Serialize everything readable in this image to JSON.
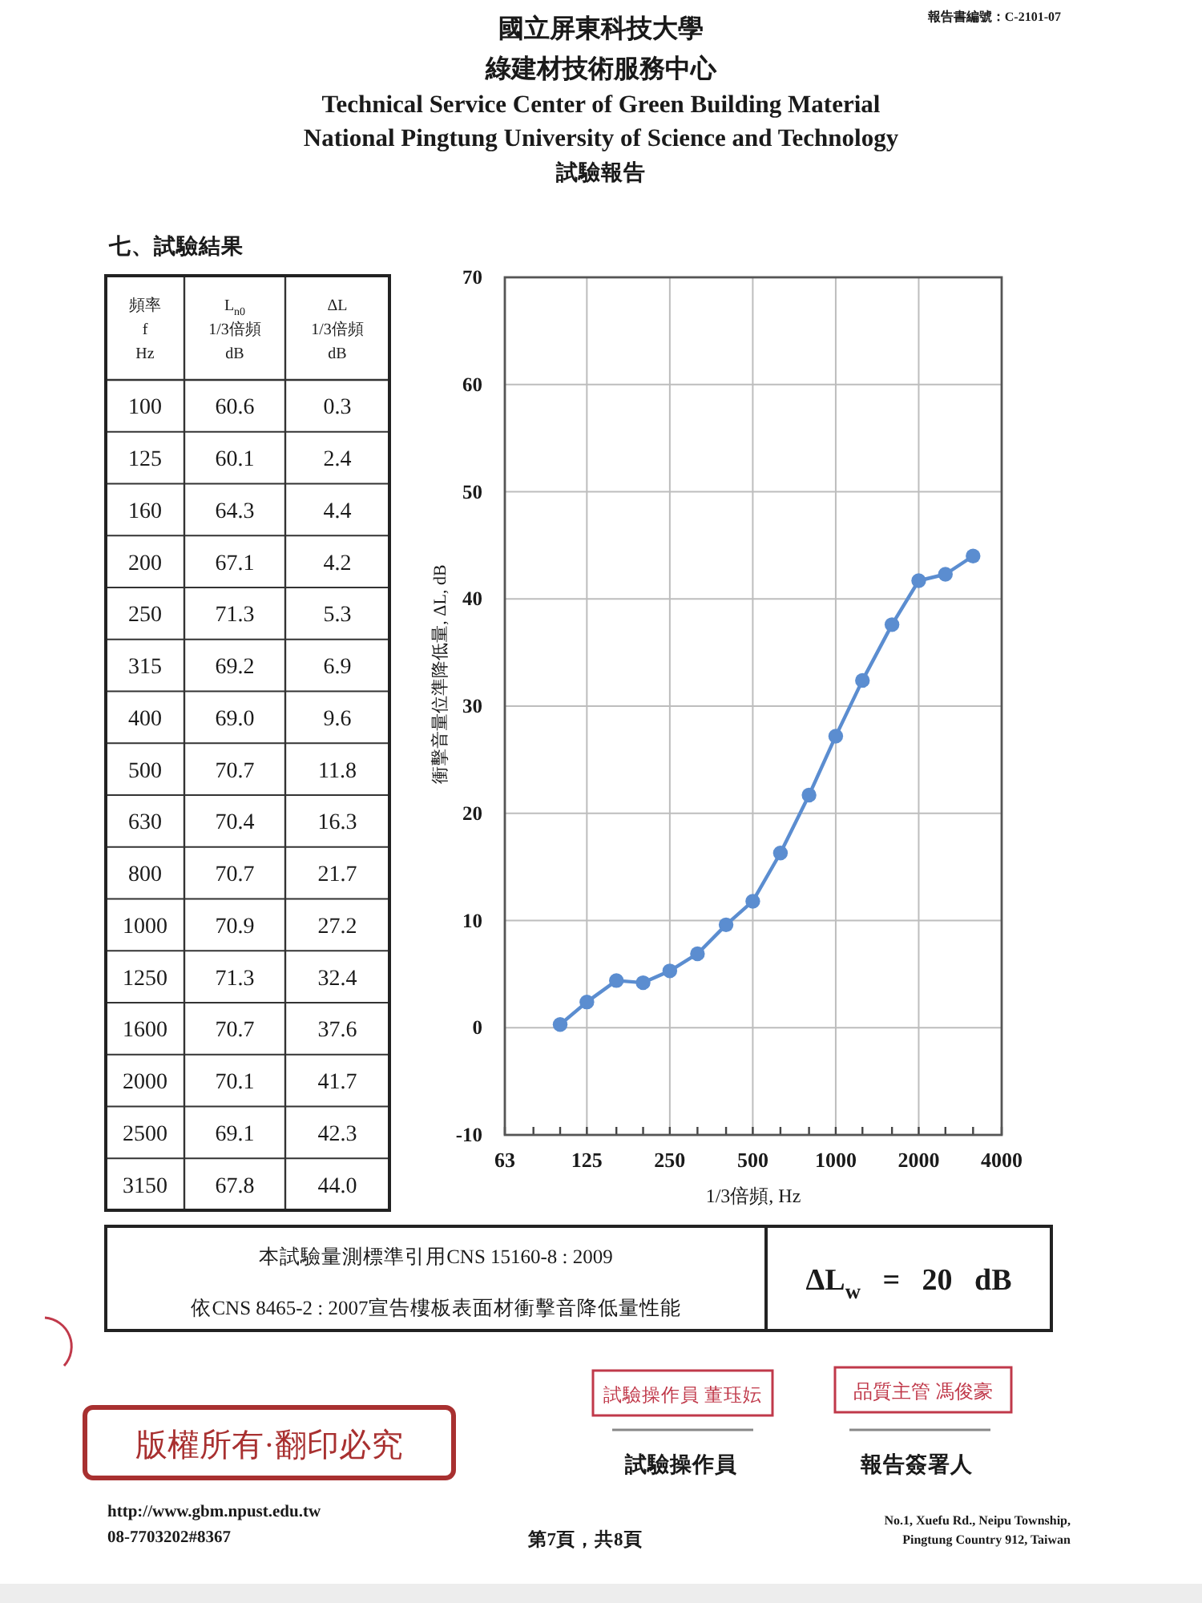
{
  "chart_data": [
    {
      "type": "other",
      "title": "國立屏東科技大學",
      "subtitle": "綠建材技術服務中心",
      "annotations": [
        "Technical Service Center of Green Building Material",
        "National Pingtung University of Science and Technology",
        "試驗報告",
        "報告書編號：C-2101-07"
      ]
    },
    {
      "type": "other",
      "title": "七、試驗結果",
      "xlabel": "頻率\nf\nHz",
      "categories": [
        "100",
        "125",
        "160",
        "200",
        "250",
        "315",
        "400",
        "500",
        "630",
        "800",
        "1000",
        "1250",
        "1600",
        "2000",
        "2500",
        "3150"
      ],
      "series": [
        {
          "name": "L$_{n0}$\n1/3倍頻\ndB",
          "values": [
            60.6,
            60.1,
            64.3,
            67.1,
            71.3,
            69.2,
            69.0,
            70.7,
            70.4,
            70.7,
            70.9,
            71.3,
            70.7,
            70.1,
            69.1,
            67.8
          ],
          "value_labels": [
            "60.6",
            "60.1",
            "64.3",
            "67.1",
            "71.3",
            "69.2",
            "69.0",
            "70.7",
            "70.4",
            "70.7",
            "70.9",
            "71.3",
            "70.7",
            "70.1",
            "69.1",
            "67.8"
          ]
        },
        {
          "name": "ΔL\n1/3倍頻\ndB",
          "values": [
            0.3,
            2.4,
            4.4,
            4.2,
            5.3,
            6.9,
            9.6,
            11.8,
            16.3,
            21.7,
            27.2,
            32.4,
            37.6,
            41.7,
            42.3,
            44.0
          ],
          "value_labels": [
            "0.3",
            "2.4",
            "4.4",
            "4.2",
            "5.3",
            "6.9",
            "9.6",
            "11.8",
            "16.3",
            "21.7",
            "27.2",
            "32.4",
            "37.6",
            "41.7",
            "42.3",
            "44.0"
          ]
        }
      ]
    },
    {
      "type": "line",
      "x": [
        100,
        125,
        160,
        200,
        250,
        315,
        400,
        500,
        630,
        800,
        1000,
        1250,
        1600,
        2000,
        2500,
        3150
      ],
      "series": [
        {
          "color": "#5b8dd0",
          "values": [
            0.3,
            2.4,
            4.4,
            4.2,
            5.3,
            6.9,
            9.6,
            11.8,
            16.3,
            21.7,
            27.2,
            32.4,
            37.6,
            41.7,
            42.3,
            44.0
          ]
        }
      ],
      "xlim": [
        63,
        4000
      ],
      "xticks": [
        63,
        {
          "value": 80,
          "label": null
        },
        {
          "value": 100,
          "label": null
        },
        125,
        {
          "value": 160,
          "label": null
        },
        {
          "value": 200,
          "label": null
        },
        250,
        {
          "value": 315,
          "label": null
        },
        {
          "value": 400,
          "label": null
        },
        500,
        {
          "value": 630,
          "label": null
        },
        {
          "value": 800,
          "label": null
        },
        1000,
        {
          "value": 1250,
          "label": null
        },
        {
          "value": 1600,
          "label": null
        },
        2000,
        {
          "value": 2500,
          "label": null
        },
        {
          "value": 3150,
          "label": null
        },
        4000
      ],
      "ylim": [
        -10,
        70
      ],
      "yticks": [
        -10,
        0,
        10,
        20,
        30,
        40,
        50,
        60,
        70
      ],
      "log": "x",
      "grid": true,
      "marker": "circle",
      "line_style": "solid",
      "xlabel": "1/3倍頻, Hz",
      "ylabel": "衝擊音量位準降低量, ΔL, dB"
    },
    {
      "type": "other",
      "annotations": [
        "本試驗量測標準引用CNS 15160-8 : 2009",
        "依CNS 8465-2 : 2007宣告樓板表面材衝擊音降低量性能",
        "ΔL$_{w}$ = 20 dB"
      ]
    },
    {
      "type": "other",
      "annotations": [
        "版權所有·翻印必究",
        "試驗操作員 董珏妘",
        "品質主管 馮俊豪",
        "試驗操作員",
        "報告簽署人",
        "http://www.gbm.npust.edu.tw",
        "08-7703202#8367",
        "第7頁，共8頁",
        "No.1, Xuefu Rd., Neipu Township,\nPingtung Country 912, Taiwan"
      ]
    }
  ]
}
